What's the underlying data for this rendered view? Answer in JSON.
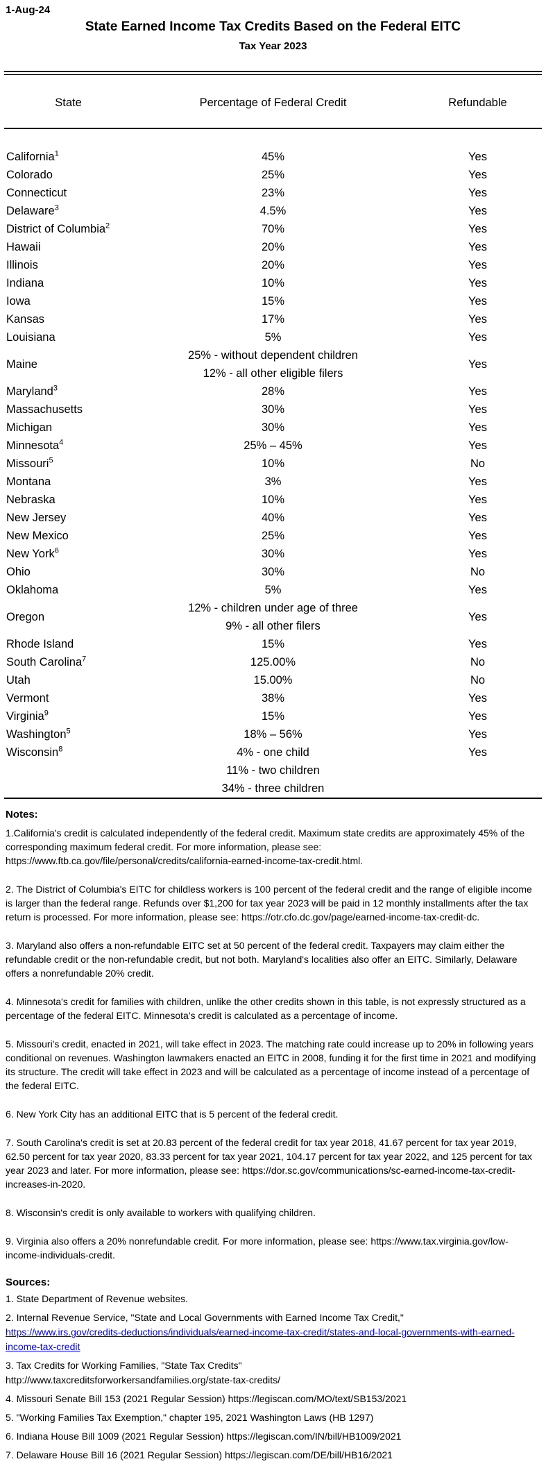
{
  "page": {
    "date": "1-Aug-24",
    "title": "State Earned Income Tax Credits Based on the Federal EITC",
    "subtitle": "Tax Year 2023"
  },
  "colors": {
    "text": "#000000",
    "link_blue": "#0000EE"
  },
  "table": {
    "columns": [
      "State",
      "Percentage of Federal Credit",
      "Refundable"
    ],
    "rows": [
      {
        "state": "California",
        "sup": "1",
        "pct": [
          "45%"
        ],
        "refundable": "Yes"
      },
      {
        "state": "Colorado",
        "sup": "",
        "pct": [
          "25%"
        ],
        "refundable": "Yes"
      },
      {
        "state": "Connecticut",
        "sup": "",
        "pct": [
          "23%"
        ],
        "refundable": "Yes"
      },
      {
        "state": "Delaware",
        "sup": "3",
        "pct": [
          "4.5%"
        ],
        "refundable": "Yes"
      },
      {
        "state": "District of Columbia",
        "sup": "2",
        "pct": [
          "70%"
        ],
        "refundable": "Yes"
      },
      {
        "state": "Hawaii",
        "sup": "",
        "pct": [
          "20%"
        ],
        "refundable": "Yes"
      },
      {
        "state": "Illinois",
        "sup": "",
        "pct": [
          "20%"
        ],
        "refundable": "Yes"
      },
      {
        "state": "Indiana",
        "sup": "",
        "pct": [
          "10%"
        ],
        "refundable": "Yes"
      },
      {
        "state": "Iowa",
        "sup": "",
        "pct": [
          "15%"
        ],
        "refundable": "Yes"
      },
      {
        "state": "Kansas",
        "sup": "",
        "pct": [
          "17%"
        ],
        "refundable": "Yes"
      },
      {
        "state": "Louisiana",
        "sup": "",
        "pct": [
          "5%"
        ],
        "refundable": "Yes"
      },
      {
        "state": "Maine",
        "sup": "",
        "pct": [
          "25% - without dependent children",
          "12% - all other eligible filers"
        ],
        "refundable": "Yes"
      },
      {
        "state": "Maryland",
        "sup": "3",
        "pct": [
          "28%"
        ],
        "refundable": "Yes"
      },
      {
        "state": "Massachusetts",
        "sup": "",
        "pct": [
          "30%"
        ],
        "refundable": "Yes"
      },
      {
        "state": "Michigan",
        "sup": "",
        "pct": [
          "30%"
        ],
        "refundable": "Yes"
      },
      {
        "state": "Minnesota",
        "sup": "4",
        "pct": [
          "25% – 45%"
        ],
        "refundable": "Yes"
      },
      {
        "state": "Missouri",
        "sup": "5",
        "pct": [
          "10%"
        ],
        "refundable": "No"
      },
      {
        "state": "Montana",
        "sup": "",
        "pct": [
          "3%"
        ],
        "refundable": "Yes"
      },
      {
        "state": "Nebraska",
        "sup": "",
        "pct": [
          "10%"
        ],
        "refundable": "Yes"
      },
      {
        "state": "New Jersey",
        "sup": "",
        "pct": [
          "40%"
        ],
        "refundable": "Yes"
      },
      {
        "state": "New Mexico",
        "sup": "",
        "pct": [
          "25%"
        ],
        "refundable": "Yes"
      },
      {
        "state": "New York",
        "sup": "6",
        "pct": [
          "30%"
        ],
        "refundable": "Yes"
      },
      {
        "state": "Ohio",
        "sup": "",
        "pct": [
          "30%"
        ],
        "refundable": "No"
      },
      {
        "state": "Oklahoma",
        "sup": "",
        "pct": [
          "5%"
        ],
        "refundable": "Yes"
      },
      {
        "state": "Oregon",
        "sup": "",
        "pct": [
          "12% - children under age of three",
          "9% - all other filers"
        ],
        "refundable": "Yes"
      },
      {
        "state": "Rhode Island",
        "sup": "",
        "pct": [
          "15%"
        ],
        "refundable": "Yes"
      },
      {
        "state": "South Carolina",
        "sup": "7",
        "pct": [
          "125.00%"
        ],
        "refundable": "No"
      },
      {
        "state": "Utah",
        "sup": "",
        "pct": [
          "15.00%"
        ],
        "refundable": "No"
      },
      {
        "state": "Vermont",
        "sup": "",
        "pct": [
          "38%"
        ],
        "refundable": "Yes"
      },
      {
        "state": "Virginia",
        "sup": "9",
        "pct": [
          "15%"
        ],
        "refundable": "Yes"
      },
      {
        "state": "Washington",
        "sup": "5",
        "pct": [
          "18% – 56%"
        ],
        "refundable": "Yes"
      },
      {
        "state": "Wisconsin",
        "sup": "8",
        "pct": [
          "4% - one child",
          "11% - two children",
          "34% - three children"
        ],
        "refundable": "Yes",
        "align": "top"
      }
    ]
  },
  "notes": {
    "heading": "Notes:",
    "items": [
      "1.California's credit is calculated independently of the federal credit. Maximum state credits are approximately 45% of the corresponding maximum federal credit. For more information, please see: https://www.ftb.ca.gov/file/personal/credits/california-earned-income-tax-credit.html.",
      "2. The District of Columbia's EITC for childless workers is 100 percent of the federal credit and the range of eligible income is larger than the federal range. Refunds over $1,200 for tax year 2023 will be paid in 12 monthly installments after the tax return is processed. For more information, please see: https://otr.cfo.dc.gov/page/earned-income-tax-credit-dc.",
      "3. Maryland also offers a non-refundable EITC set at 50 percent of the federal credit. Taxpayers may claim either the refundable credit or the non-refundable credit, but not both. Maryland's localities also offer an EITC. Similarly, Delaware offers a nonrefundable 20% credit.",
      "4. Minnesota's credit for families with children, unlike the other credits shown in this table, is not expressly structured as a percentage of the federal EITC. Minnesota's credit is calculated as a percentage of income.",
      "5. Missouri's credit, enacted in 2021, will take effect in 2023. The matching rate could increase up to 20% in following years conditional on revenues. Washington lawmakers enacted an EITC in 2008, funding it for the first time in 2021 and modifying its structure. The credit will take effect in 2023 and will be calculated as a percentage of income instead of a percentage of the federal EITC.",
      "6. New York City has an additional EITC that is 5 percent of the federal credit.",
      "7. South Carolina's credit is set at 20.83 percent of the federal credit for tax year 2018, 41.67 percent for tax year 2019, 62.50 percent for tax year 2020, 83.33 percent for tax year 2021, 104.17 percent for tax year 2022, and 125 percent for tax year 2023 and later. For more information, please see: https://dor.sc.gov/communications/sc-earned-income-tax-credit-increases-in-2020.",
      "8. Wisconsin's credit is only available to workers with qualifying children.",
      "9. Virginia also offers a 20% nonrefundable credit. For more information, please see: https://www.tax.virginia.gov/low-income-individuals-credit."
    ]
  },
  "sources": {
    "heading": "Sources:",
    "items": [
      {
        "text": "1. State Department of Revenue websites."
      },
      {
        "text": "2. Internal Revenue Service, \"State and Local Governments with Earned Income Tax Credit,\"",
        "link": "https://www.irs.gov/credits-deductions/individuals/earned-income-tax-credit/states-and-local-governments-with-earned-income-tax-credit"
      },
      {
        "text": "3. Tax Credits for Working Families, \"State Tax Credits\"",
        "url": "http://www.taxcreditsforworkersandfamilies.org/state-tax-credits/"
      },
      {
        "text": "4. Missouri Senate Bill 153 (2021 Regular Session) https://legiscan.com/MO/text/SB153/2021"
      },
      {
        "text": "5. \"Working Families Tax Exemption,\" chapter 195, 2021 Washington Laws (HB 1297)"
      },
      {
        "text": "6. Indiana House Bill 1009 (2021 Regular Session) https://legiscan.com/IN/bill/HB1009/2021"
      },
      {
        "text": "7. Delaware House Bill 16 (2021 Regular Session) https://legiscan.com/DE/bill/HB16/2021"
      }
    ]
  }
}
